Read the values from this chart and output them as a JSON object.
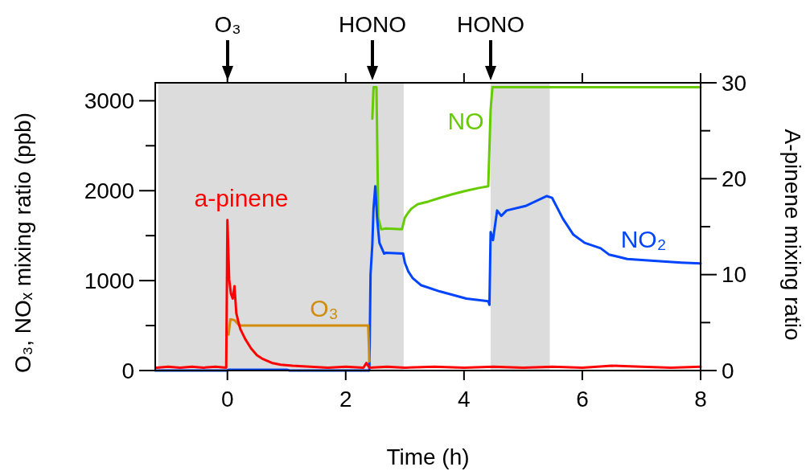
{
  "chart_data": {
    "type": "line",
    "xlabel": "Time (h)",
    "ylabel": "O₃, NOₓ mixing ratio (ppb)",
    "y2label": "A-pinene mixing ratio",
    "xlim": [
      -1.22,
      8
    ],
    "xticks": [
      0,
      2,
      4,
      6,
      8
    ],
    "ylim": [
      0,
      3200
    ],
    "yticks": [
      0,
      {
        "value": 500,
        "label": null
      },
      1000,
      {
        "value": 1500,
        "label": null
      },
      2000,
      {
        "value": 2500,
        "label": null
      },
      3000
    ],
    "y2lim": [
      0,
      30
    ],
    "y2ticks": [
      0,
      {
        "value": 5,
        "label": null
      },
      10,
      {
        "value": 15,
        "label": null
      },
      20,
      {
        "value": 25,
        "label": null
      },
      30
    ],
    "grid": false,
    "marker": "none",
    "line_style": "solid",
    "bands": [
      {
        "axis": "x",
        "from": -1.17,
        "to": 2.98,
        "color": "#dcdcdc"
      },
      {
        "axis": "x",
        "from": 4.45,
        "to": 5.45,
        "color": "#dcdcdc"
      }
    ],
    "annotations": [
      "O₃",
      "HONO",
      "HONO"
    ],
    "series": [
      {
        "name": "NO",
        "color": "#66cc00",
        "x": [
          2.45,
          2.47,
          2.52,
          2.55,
          2.6,
          2.68,
          2.95,
          3.0,
          3.05,
          3.11,
          3.22,
          3.4,
          3.59,
          3.8,
          4.04,
          4.25,
          4.41,
          4.45,
          4.48,
          8
        ],
        "values": [
          2800,
          3150,
          3150,
          1700,
          1570,
          1580,
          1570,
          1700,
          1750,
          1800,
          1850,
          1880,
          1920,
          1960,
          2000,
          2030,
          2050,
          2900,
          3150,
          3150
        ]
      },
      {
        "name": "NO₂",
        "color": "#0044ff",
        "x": [
          -1.22,
          0,
          0.02,
          1.0,
          1.05,
          2.4,
          2.42,
          2.45,
          2.47,
          2.5,
          2.53,
          2.57,
          2.65,
          2.68,
          2.97,
          3.0,
          3.06,
          3.13,
          3.27,
          3.59,
          4.04,
          4.41,
          4.43,
          4.45,
          4.49,
          4.56,
          4.63,
          4.72,
          5.04,
          5.4,
          5.49,
          5.67,
          5.85,
          6.04,
          6.31,
          6.45,
          6.76,
          7.21,
          7.67,
          8
        ],
        "values": [
          0,
          0,
          10,
          10,
          0,
          0,
          1070,
          1400,
          1800,
          2050,
          1700,
          1420,
          1300,
          1310,
          1300,
          1200,
          1100,
          1030,
          950,
          880,
          800,
          770,
          730,
          1540,
          1450,
          1780,
          1720,
          1780,
          1830,
          1940,
          1920,
          1690,
          1510,
          1420,
          1360,
          1290,
          1240,
          1220,
          1200,
          1190
        ]
      },
      {
        "name": "O₃",
        "color": "#d08c0a",
        "x": [
          0.02,
          0.05,
          0.12,
          0.2,
          2.38,
          2.4
        ],
        "values": [
          400,
          570,
          560,
          500,
          500,
          100
        ]
      },
      {
        "name": "a-pinene",
        "color": "#ff0000",
        "axis": "y2",
        "x": [
          -1.2,
          -1.0,
          -0.8,
          -0.6,
          -0.4,
          -0.2,
          -0.02,
          0,
          0.03,
          0.06,
          0.09,
          0.12,
          0.15,
          0.18,
          0.22,
          0.3,
          0.4,
          0.5,
          0.6,
          0.75,
          0.9,
          1.1,
          1.4,
          1.7,
          2.0,
          2.3,
          2.35,
          2.4,
          2.7,
          3.0,
          3.5,
          4.0,
          4.5,
          5.0,
          5.5,
          6.0,
          6.5,
          7.0,
          7.5,
          8.0
        ],
        "values": [
          0.3,
          0.4,
          0.3,
          0.4,
          0.3,
          0.4,
          0.3,
          15.7,
          9.5,
          8,
          7.5,
          8.8,
          6,
          5.2,
          4.3,
          3.3,
          2.3,
          1.6,
          1.2,
          0.8,
          0.6,
          0.5,
          0.4,
          0.3,
          0.4,
          0.3,
          0.8,
          0.3,
          0.4,
          0.3,
          0.4,
          0.3,
          0.4,
          0.3,
          0.4,
          0.3,
          0.5,
          0.4,
          0.3,
          0.4
        ]
      }
    ]
  }
}
